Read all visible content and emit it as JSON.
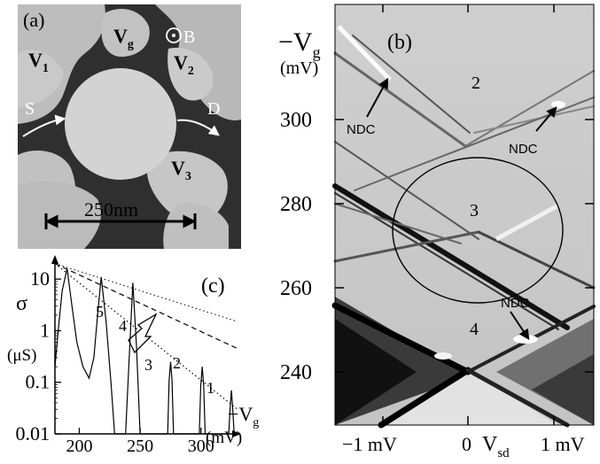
{
  "panel_a": {
    "label": "(a)",
    "gate_v1": "V",
    "gate_v1_sub": "1",
    "gate_vg": "V",
    "gate_vg_sub": "g",
    "gate_v2": "V",
    "gate_v2_sub": "2",
    "gate_v3": "V",
    "gate_v3_sub": "3",
    "field": "B",
    "source": "S",
    "drain": "D",
    "scale_bar": "250nm"
  },
  "panel_b": {
    "label": "(b)",
    "y_axis_label": "−V",
    "y_axis_sub": "g",
    "y_axis_unit": "(mV)",
    "y_ticks": [
      "300",
      "280",
      "260",
      "240"
    ],
    "x_ticks": [
      "−1 mV",
      "0",
      "1 mV"
    ],
    "x_axis_label": "V",
    "x_axis_sub": "sd",
    "diamond_labels": [
      "2",
      "3",
      "4"
    ],
    "ndc_labels": [
      "NDC",
      "NDC",
      "NDC"
    ]
  },
  "panel_c": {
    "label": "(c)",
    "y_axis_symbol": "σ",
    "y_axis_unit": "(μS)",
    "x_axis_label": "−V",
    "x_axis_sub": "g",
    "x_axis_unit": "(mV)",
    "peak_labels": [
      "5",
      "4",
      "3",
      "2",
      "1"
    ]
  },
  "chart_data": {
    "type": "line",
    "xlabel": "−Vg (mV)",
    "ylabel": "σ (μS)",
    "y_scale": "log",
    "xlim": [
      180,
      330
    ],
    "ylim": [
      0.01,
      25
    ],
    "x_ticks": [
      200,
      250,
      300
    ],
    "y_ticks": [
      0.01,
      0.1,
      1,
      10
    ],
    "peaks": [
      {
        "x": 190,
        "y": 16
      },
      {
        "x": 218,
        "y": 11
      },
      {
        "x": 244,
        "y": 8.5
      },
      {
        "x": 275,
        "y": 0.25
      },
      {
        "x": 301,
        "y": 0.2
      },
      {
        "x": 325,
        "y": 0.07
      }
    ]
  }
}
